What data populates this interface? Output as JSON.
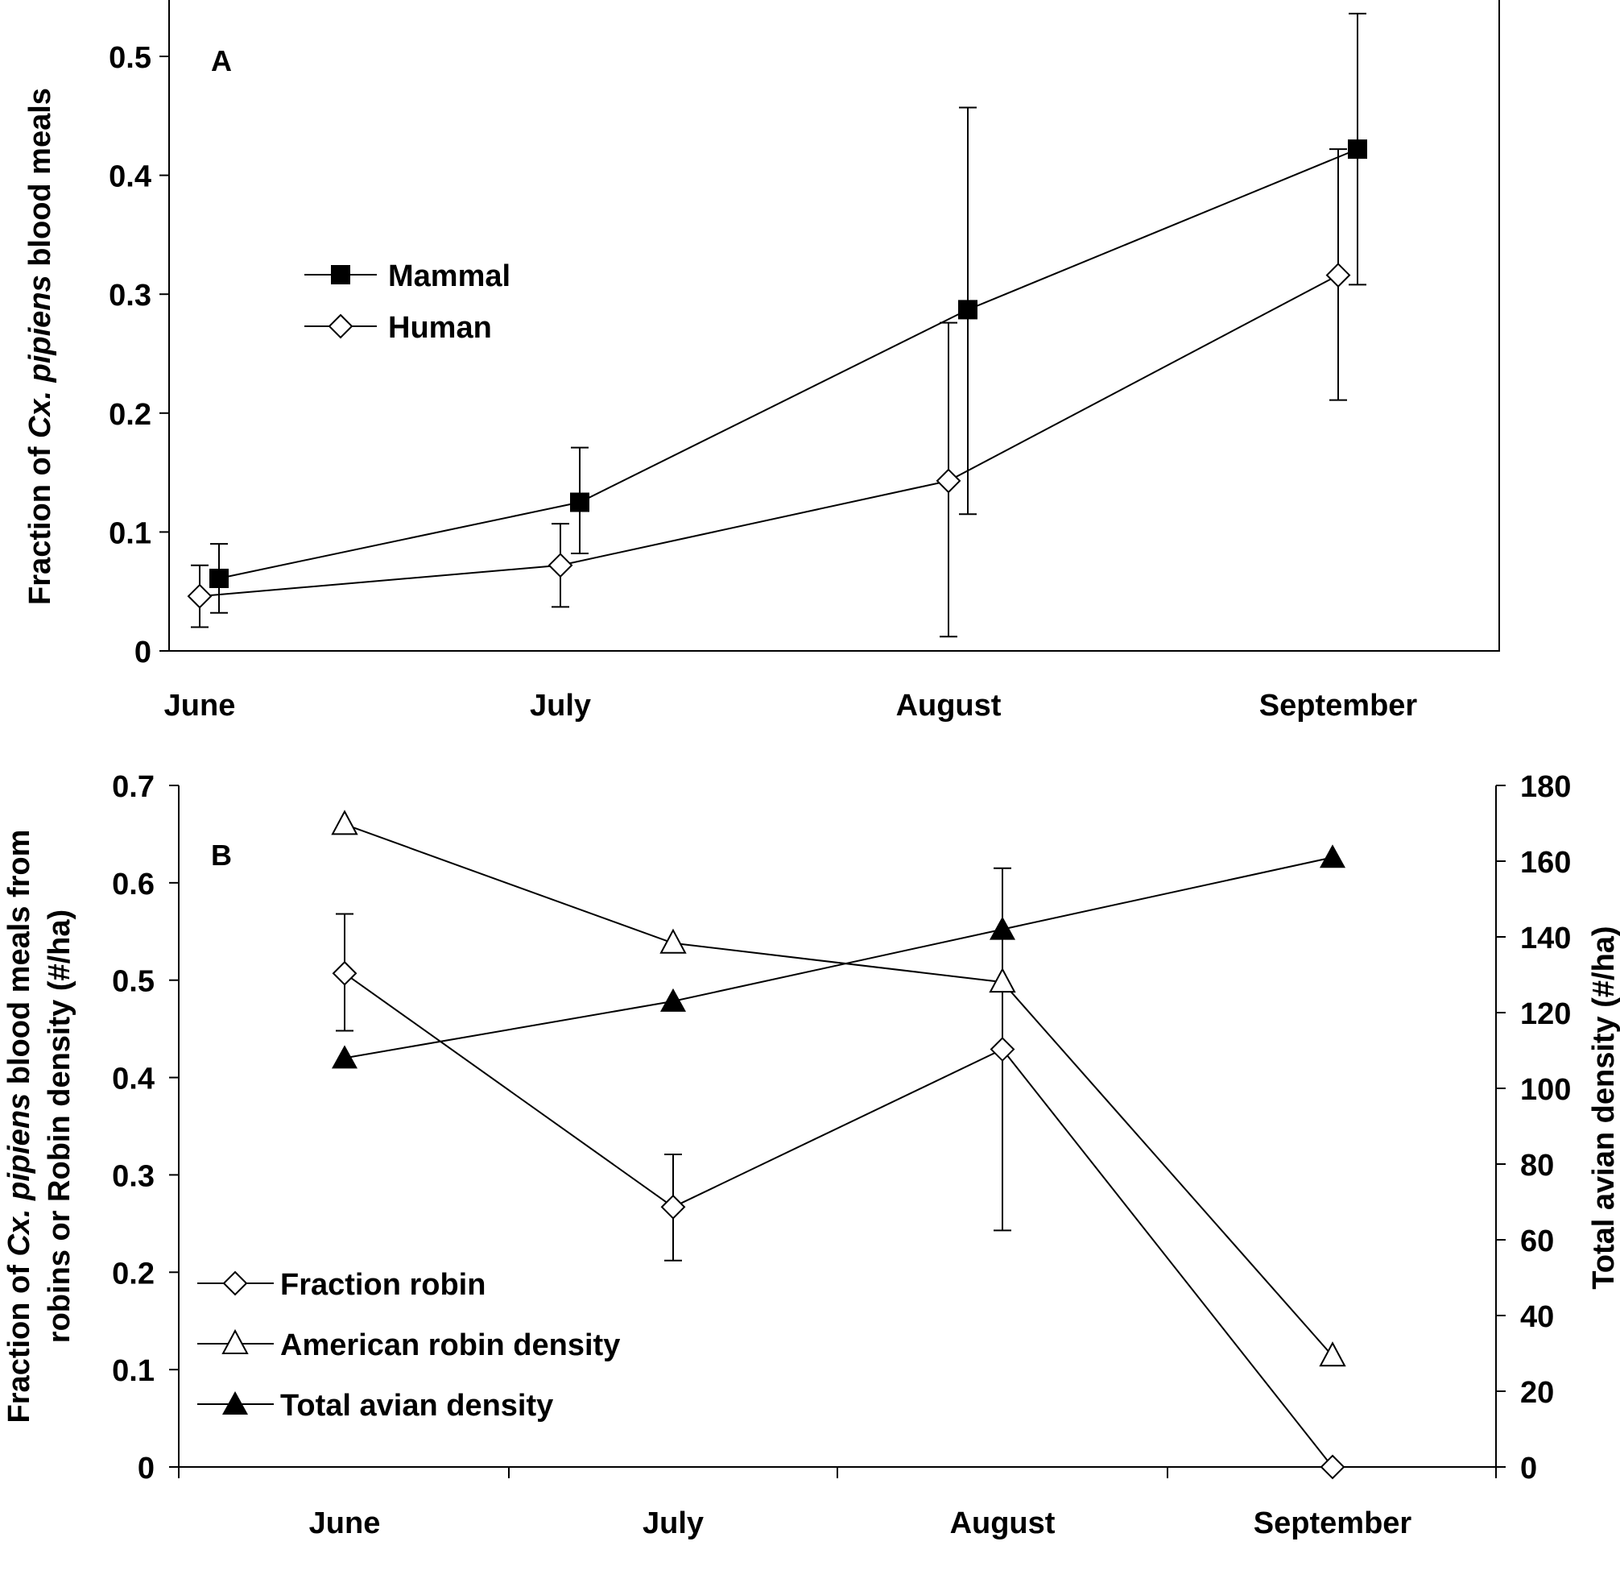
{
  "chart_data": [
    {
      "panel_label": "A",
      "type": "line",
      "categories": [
        "June",
        "July",
        "August",
        "September"
      ],
      "ylabel": [
        "Fraction of ",
        "Cx. pipiens",
        " blood meals"
      ],
      "ylim": [
        0,
        0.55
      ],
      "yticks": [
        "0",
        "0.1",
        "0.2",
        "0.3",
        "0.4",
        "0.5"
      ],
      "legend_position": "left-middle",
      "series": [
        {
          "name": "Mammal",
          "marker": "filled-square",
          "values": [
            0.061,
            0.125,
            0.287,
            0.422
          ],
          "err_low": [
            0.032,
            0.082,
            0.115,
            0.308
          ],
          "err_high": [
            0.09,
            0.171,
            0.457,
            0.536
          ]
        },
        {
          "name": "Human",
          "marker": "open-diamond",
          "values": [
            0.046,
            0.072,
            0.143,
            0.316
          ],
          "err_low": [
            0.02,
            0.037,
            0.012,
            0.211
          ],
          "err_high": [
            0.072,
            0.107,
            0.276,
            0.422
          ]
        }
      ]
    },
    {
      "panel_label": "B",
      "type": "line",
      "categories": [
        "June",
        "July",
        "August",
        "September"
      ],
      "ylabel_lines": [
        [
          "Fraction of ",
          "Cx. pipiens",
          " blood meals from"
        ],
        [
          "robins or Robin density (#/ha)"
        ]
      ],
      "y2label": "Total avian density (#/ha)",
      "ylim": [
        0,
        0.7
      ],
      "yticks": [
        "0",
        "0.1",
        "0.2",
        "0.3",
        "0.4",
        "0.5",
        "0.6",
        "0.7"
      ],
      "y2lim": [
        0,
        180
      ],
      "y2ticks": [
        "0",
        "20",
        "40",
        "60",
        "80",
        "100",
        "120",
        "140",
        "160",
        "180"
      ],
      "legend_position": "bottom-left",
      "series": [
        {
          "name": "Fraction robin",
          "marker": "open-diamond",
          "axis": "left",
          "values": [
            0.507,
            0.267,
            0.429,
            0.0
          ],
          "err_low": [
            0.448,
            0.212,
            0.243,
            null
          ],
          "err_high": [
            0.568,
            0.321,
            0.615,
            null
          ]
        },
        {
          "name": "American robin density",
          "marker": "open-triangle",
          "axis": "left",
          "values": [
            0.66,
            0.538,
            0.498,
            0.114
          ]
        },
        {
          "name": "Total avian density",
          "marker": "filled-triangle",
          "axis": "right",
          "values": [
            108,
            123,
            142,
            161
          ]
        }
      ]
    }
  ]
}
